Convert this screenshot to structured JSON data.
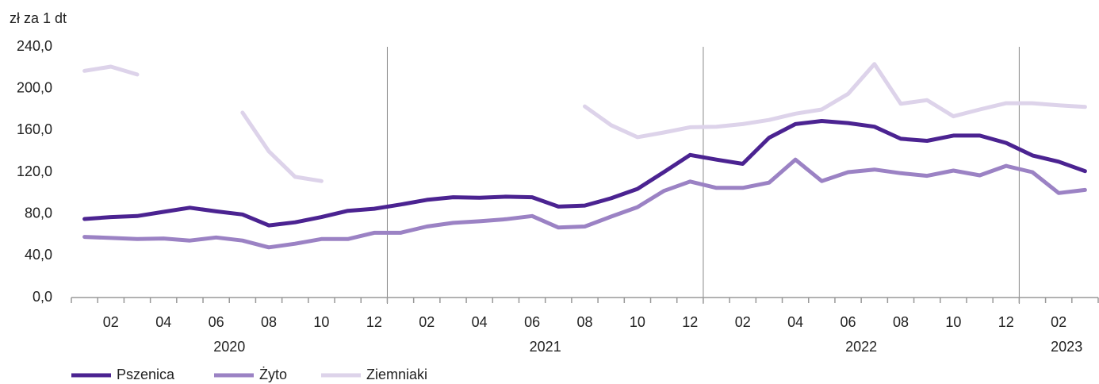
{
  "chart_data": {
    "type": "line",
    "y_axis_label": "zł za 1 dt",
    "categories": [
      null,
      "02",
      null,
      "04",
      null,
      "06",
      null,
      "08",
      null,
      "10",
      null,
      "12",
      null,
      "02",
      null,
      "04",
      null,
      "06",
      null,
      "08",
      null,
      "10",
      null,
      "12",
      null,
      "02",
      null,
      "04",
      null,
      "06",
      null,
      "08",
      null,
      "10",
      null,
      "12",
      null,
      "02",
      null
    ],
    "year_labels": [
      "2020",
      "2021",
      "2022",
      "2023"
    ],
    "series": [
      {
        "name": "Pszenica",
        "color": "#4b2391",
        "values": [
          75.2,
          77,
          78,
          82,
          86,
          82.5,
          79.5,
          69,
          72,
          77,
          83,
          85,
          89,
          93.5,
          96,
          95.5,
          96.5,
          96,
          87,
          88,
          95,
          104,
          120,
          136.5,
          132,
          128,
          153,
          166,
          169,
          167,
          163.5,
          152,
          150,
          155,
          155,
          148,
          136,
          130,
          121
        ]
      },
      {
        "name": "Żyto",
        "color": "#9b82c4",
        "values": [
          58,
          57,
          56,
          56.5,
          54.5,
          57.5,
          54.5,
          48,
          51.5,
          56,
          56,
          62,
          62,
          68,
          71.5,
          73,
          75,
          78,
          67,
          68,
          77.5,
          86.5,
          102,
          111,
          105,
          105,
          110,
          132,
          111.5,
          120,
          122.5,
          119,
          116.5,
          121.5,
          117,
          126,
          120,
          100,
          103
        ]
      },
      {
        "name": "Ziemniaki",
        "color": "#ddd3ea",
        "values": [
          217,
          221,
          213.5,
          null,
          null,
          null,
          177,
          140,
          115.5,
          111.5,
          null,
          null,
          null,
          null,
          null,
          null,
          null,
          null,
          null,
          183,
          165,
          153.5,
          158,
          163,
          163.5,
          166,
          170,
          176,
          180,
          195,
          223.5,
          185.5,
          189,
          173.5,
          180,
          186,
          186,
          184,
          182.5
        ]
      }
    ],
    "ylim": [
      0,
      240
    ],
    "yticks": [
      {
        "value": 0,
        "label": "0,0"
      },
      {
        "value": 40,
        "label": "40,0"
      },
      {
        "value": 80,
        "label": "80,0"
      },
      {
        "value": 120,
        "label": "120,0"
      },
      {
        "value": 160,
        "label": "160,0"
      },
      {
        "value": 200,
        "label": "200,0"
      },
      {
        "value": 240,
        "label": "240,0"
      }
    ],
    "legend": "bottom-left"
  }
}
